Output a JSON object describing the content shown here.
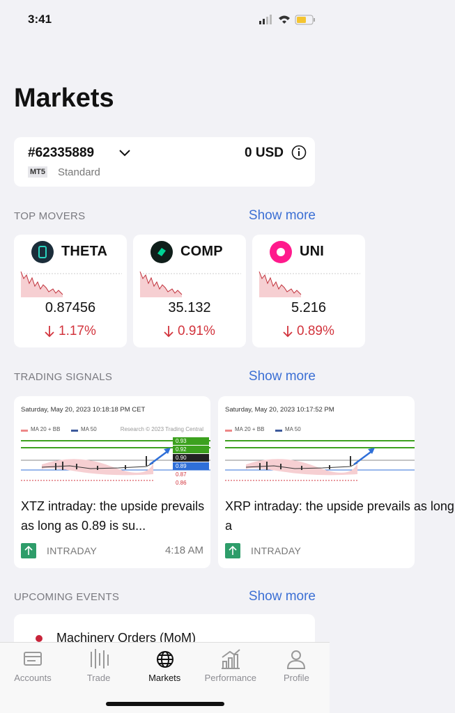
{
  "status_bar": {
    "time": "3:41"
  },
  "header": {
    "title": "Markets"
  },
  "account": {
    "id": "#62335889",
    "balance": "0 USD",
    "platform": "MT5",
    "type": "Standard"
  },
  "top_movers": {
    "title": "TOP MOVERS",
    "show_more": "Show more",
    "items": [
      {
        "symbol": "THETA",
        "price": "0.87456",
        "change": "1.17%"
      },
      {
        "symbol": "COMP",
        "price": "35.132",
        "change": "0.91%"
      },
      {
        "symbol": "UNI",
        "price": "5.216",
        "change": "0.89%"
      }
    ]
  },
  "trading_signals": {
    "title": "TRADING SIGNALS",
    "show_more": "Show more",
    "items": [
      {
        "date": "Saturday, May 20, 2023 10:18:18 PM CET",
        "legend": [
          "MA 20 + BB",
          "MA 50"
        ],
        "source": "Research © 2023 Trading Central",
        "levels": [
          "0.93",
          "0.92",
          "0.90",
          "0.89",
          "0.87",
          "0.86"
        ],
        "title": "XTZ intraday: the upside prevails as long as 0.89 is su...",
        "tag": "INTRADAY",
        "time": "4:18 AM"
      },
      {
        "date": "Saturday, May 20, 2023 10:17:52 PM",
        "legend": [
          "MA 20 + BB",
          "MA 50"
        ],
        "title": "XRP intraday: the upside prevails as long a",
        "tag": "INTRADAY"
      }
    ]
  },
  "upcoming_events": {
    "title": "UPCOMING EVENTS",
    "show_more": "Show more",
    "items": [
      {
        "name": "Machinery Orders (MoM)"
      }
    ]
  },
  "tab_bar": {
    "tabs": [
      "Accounts",
      "Trade",
      "Markets",
      "Performance",
      "Profile"
    ]
  }
}
